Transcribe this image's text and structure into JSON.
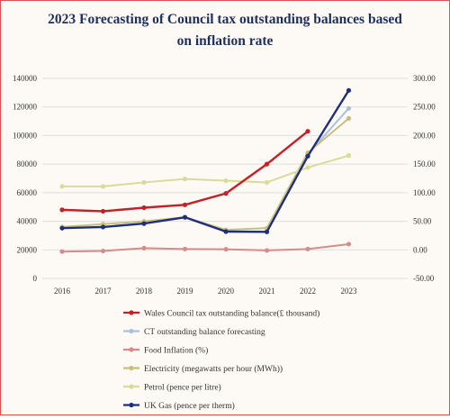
{
  "chart_data": {
    "type": "line",
    "title_lines": [
      "2023 Forecasting of Council tax outstanding balances based",
      "on inflation rate"
    ],
    "x": [
      "2016",
      "2017",
      "2018",
      "2019",
      "2020",
      "2021",
      "2022",
      "2023"
    ],
    "y_left": {
      "min": 0,
      "max": 140000,
      "ticks": [
        "0",
        "20000",
        "40000",
        "60000",
        "80000",
        "100000",
        "120000",
        "140000"
      ]
    },
    "y_right": {
      "min": -50,
      "max": 300,
      "ticks": [
        "-50.00",
        "0.00",
        "50.00",
        "100.00",
        "150.00",
        "200.00",
        "250.00",
        "300.00"
      ]
    },
    "grid": "horizontal",
    "legend_position": "bottom",
    "series": [
      {
        "name": "CT outstanding balance forecasting",
        "axis": "left",
        "color": "#a9c1df",
        "width": 2,
        "values": [
          null,
          null,
          null,
          null,
          null,
          null,
          87000,
          119000
        ]
      },
      {
        "name": "Food Inflation (%)",
        "axis": "right",
        "color": "#d98a8a",
        "width": 2,
        "values": [
          -3,
          -2,
          3,
          1.5,
          1,
          -1,
          1.5,
          10
        ]
      },
      {
        "name": "Electricity (megawatts per hour (MWh))",
        "axis": "right",
        "color": "#c9be7c",
        "width": 2,
        "values": [
          40,
          45,
          50,
          57,
          35,
          38,
          170,
          230
        ]
      },
      {
        "name": "Petrol (pence per litre)",
        "axis": "right",
        "color": "#d7dc98",
        "width": 2,
        "values": [
          111,
          111,
          118,
          124,
          121,
          118,
          144,
          165
        ]
      },
      {
        "name": "Wales Council tax outstanding balance(£ thousand)",
        "axis": "left",
        "color": "#c42026",
        "width": 2.4,
        "values": [
          48000,
          47000,
          49500,
          51500,
          59500,
          80000,
          103000,
          null
        ]
      },
      {
        "name": "UK Gas (pence per therm)",
        "axis": "right",
        "color": "#1f2f7a",
        "width": 2.4,
        "values": [
          38,
          40,
          46,
          57,
          32,
          31.5,
          164,
          279
        ]
      }
    ],
    "legend_order": [
      "Wales Council tax outstanding balance(£ thousand)",
      "CT outstanding balance forecasting",
      "Food Inflation (%)",
      "Electricity (megawatts per hour (MWh))",
      "Petrol (pence per litre)",
      "UK Gas (pence per therm)"
    ]
  }
}
